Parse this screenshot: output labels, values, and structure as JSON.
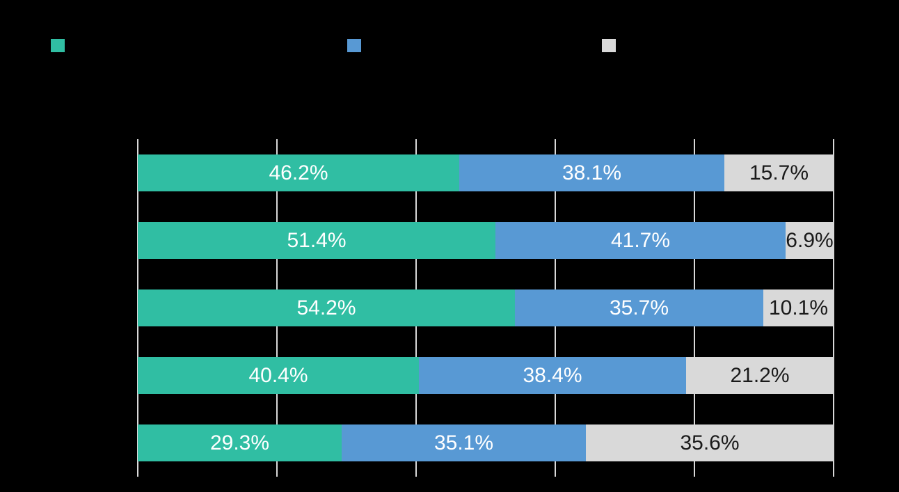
{
  "colors": {
    "background": "#000000",
    "gridline": "#D9D9D9",
    "label_on_color": "#FFFFFF",
    "label_on_gray": "#1A1A1A"
  },
  "legend": {
    "position": "top",
    "swatches": [
      {
        "icon": "legend-swatch-teal-icon",
        "color": "#30BEA3"
      },
      {
        "icon": "legend-swatch-blue-icon",
        "color": "#5899D4"
      },
      {
        "icon": "legend-swatch-gray-icon",
        "color": "#D9D9D9"
      }
    ]
  },
  "chart_data": {
    "type": "bar",
    "orientation": "horizontal",
    "stacked": true,
    "categories": [
      "",
      "",
      "",
      "",
      ""
    ],
    "series": [
      {
        "name": "series-1-teal",
        "color": "#30BEA3",
        "label_color": "#FFFFFF",
        "values": [
          46.2,
          51.4,
          54.2,
          40.4,
          29.3
        ]
      },
      {
        "name": "series-2-blue",
        "color": "#5899D4",
        "label_color": "#FFFFFF",
        "values": [
          38.1,
          41.7,
          35.7,
          38.4,
          35.1
        ]
      },
      {
        "name": "series-3-gray",
        "color": "#D9D9D9",
        "label_color": "#1A1A1A",
        "values": [
          15.7,
          6.9,
          10.1,
          21.2,
          35.6
        ]
      }
    ],
    "value_label_suffix": "%",
    "value_label_decimals": 1,
    "xlim": [
      0,
      100
    ],
    "grid": true,
    "gridlines_percent": [
      0,
      20,
      40,
      60,
      80,
      100
    ],
    "legend_position": "top"
  }
}
